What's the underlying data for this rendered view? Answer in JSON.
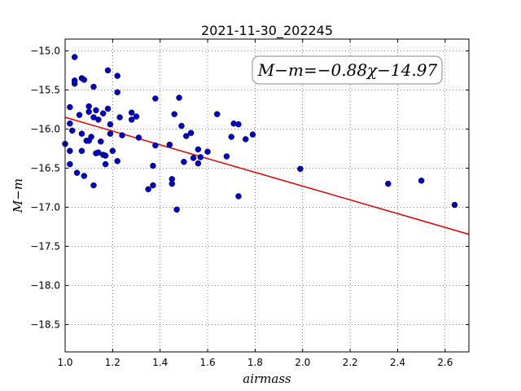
{
  "chart_data": {
    "type": "scatter",
    "title": "2021-11-30_202245",
    "xlabel": "airmass",
    "ylabel": "M−m",
    "xlim": [
      1.0,
      2.7
    ],
    "ylim": [
      -18.85,
      -14.85
    ],
    "yaxis_inverted": true,
    "grid": true,
    "x_ticks": [
      1.0,
      1.2,
      1.4,
      1.6,
      1.8,
      2.0,
      2.2,
      2.4,
      2.6
    ],
    "x_tick_labels": [
      "1.0",
      "1.2",
      "1.4",
      "1.6",
      "1.8",
      "2.0",
      "2.2",
      "2.4",
      "2.6"
    ],
    "y_ticks": [
      -15.0,
      -15.5,
      -16.0,
      -16.5,
      -17.0,
      -17.5,
      -18.0,
      -18.5
    ],
    "y_tick_labels": [
      "−15.0",
      "−15.5",
      "−16.0",
      "−16.5",
      "−17.0",
      "−17.5",
      "−18.0",
      "−18.5"
    ],
    "annotation": "M−m=−0.88χ−14.97",
    "annotation_position": "top-right",
    "fit_line": {
      "slope": -0.88,
      "intercept": -14.97,
      "x_range": [
        1.0,
        2.7
      ],
      "color": "#dd0000"
    },
    "point_color": "#0000bb",
    "points": [
      [
        1.0,
        -16.19
      ],
      [
        1.02,
        -15.72
      ],
      [
        1.03,
        -16.02
      ],
      [
        1.02,
        -16.28
      ],
      [
        1.02,
        -16.45
      ],
      [
        1.02,
        -15.93
      ],
      [
        1.04,
        -15.08
      ],
      [
        1.04,
        -15.42
      ],
      [
        1.04,
        -15.38
      ],
      [
        1.05,
        -16.56
      ],
      [
        1.06,
        -15.82
      ],
      [
        1.07,
        -15.35
      ],
      [
        1.08,
        -15.37
      ],
      [
        1.07,
        -16.06
      ],
      [
        1.07,
        -16.28
      ],
      [
        1.08,
        -16.6
      ],
      [
        1.09,
        -16.15
      ],
      [
        1.1,
        -16.15
      ],
      [
        1.1,
        -15.71
      ],
      [
        1.1,
        -15.78
      ],
      [
        1.11,
        -16.1
      ],
      [
        1.12,
        -15.85
      ],
      [
        1.12,
        -15.46
      ],
      [
        1.12,
        -16.72
      ],
      [
        1.13,
        -16.31
      ],
      [
        1.13,
        -15.76
      ],
      [
        1.14,
        -15.88
      ],
      [
        1.14,
        -16.3
      ],
      [
        1.15,
        -16.16
      ],
      [
        1.16,
        -15.8
      ],
      [
        1.16,
        -16.33
      ],
      [
        1.17,
        -16.34
      ],
      [
        1.17,
        -16.45
      ],
      [
        1.18,
        -15.25
      ],
      [
        1.18,
        -15.74
      ],
      [
        1.19,
        -15.94
      ],
      [
        1.19,
        -16.06
      ],
      [
        1.2,
        -16.28
      ],
      [
        1.22,
        -15.32
      ],
      [
        1.22,
        -16.41
      ],
      [
        1.22,
        -15.53
      ],
      [
        1.23,
        -15.85
      ],
      [
        1.24,
        -16.08
      ],
      [
        1.28,
        -15.79
      ],
      [
        1.28,
        -15.88
      ],
      [
        1.3,
        -15.84
      ],
      [
        1.31,
        -16.11
      ],
      [
        1.35,
        -16.77
      ],
      [
        1.37,
        -16.72
      ],
      [
        1.37,
        -16.47
      ],
      [
        1.38,
        -15.61
      ],
      [
        1.38,
        -16.21
      ],
      [
        1.44,
        -16.2
      ],
      [
        1.45,
        -16.64
      ],
      [
        1.45,
        -16.7
      ],
      [
        1.46,
        -15.81
      ],
      [
        1.47,
        -17.03
      ],
      [
        1.48,
        -15.6
      ],
      [
        1.49,
        -15.96
      ],
      [
        1.5,
        -16.42
      ],
      [
        1.51,
        -16.09
      ],
      [
        1.53,
        -16.05
      ],
      [
        1.54,
        -16.37
      ],
      [
        1.56,
        -16.44
      ],
      [
        1.56,
        -16.26
      ],
      [
        1.57,
        -16.36
      ],
      [
        1.6,
        -16.29
      ],
      [
        1.64,
        -15.81
      ],
      [
        1.68,
        -16.35
      ],
      [
        1.7,
        -16.1
      ],
      [
        1.71,
        -15.93
      ],
      [
        1.73,
        -15.94
      ],
      [
        1.73,
        -16.86
      ],
      [
        1.76,
        -16.13
      ],
      [
        1.79,
        -16.07
      ],
      [
        1.99,
        -16.51
      ],
      [
        2.36,
        -16.7
      ],
      [
        2.5,
        -16.66
      ],
      [
        2.64,
        -16.97
      ]
    ]
  }
}
